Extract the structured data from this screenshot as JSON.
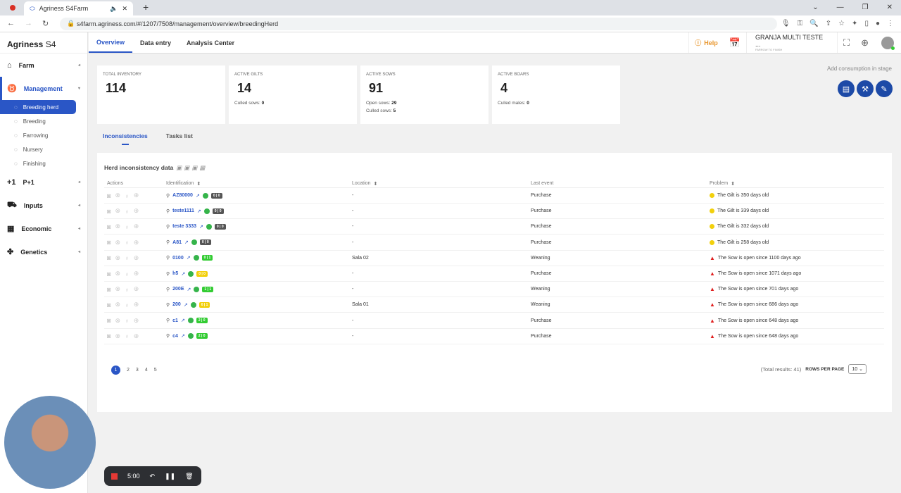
{
  "browser": {
    "tab_title": "Agriness S4Farm",
    "url": "s4farm.agriness.com/#/1207/7508/management/overview/breedingHerd"
  },
  "sidebar": {
    "brand_bold": "Agriness",
    "brand_rest": "S4",
    "items": [
      {
        "label": "Farm",
        "icon": "house-icon"
      },
      {
        "label": "Management",
        "icon": "pig-icon",
        "active": true,
        "sub": [
          {
            "label": "Breeding herd",
            "active": true
          },
          {
            "label": "Breeding"
          },
          {
            "label": "Farrowing"
          },
          {
            "label": "Nursery"
          },
          {
            "label": "Finishing"
          }
        ]
      },
      {
        "label": "P+1",
        "icon": "plus-one-icon"
      },
      {
        "label": "Inputs",
        "icon": "cart-icon"
      },
      {
        "label": "Economic",
        "icon": "calculator-icon"
      },
      {
        "label": "Genetics",
        "icon": "dna-icon"
      }
    ]
  },
  "topnav": {
    "tabs": [
      "Overview",
      "Data entry",
      "Analysis Center"
    ],
    "help": "Help",
    "farm_name": "GRANJA MULTI TESTE ...",
    "farm_type": "FARROW TO FINISH"
  },
  "cards": [
    {
      "label": "TOTAL INVENTORY",
      "value": "114",
      "sub": []
    },
    {
      "label": "ACTIVE GILTS",
      "value": "14",
      "sub": [
        {
          "k": "Culled sows:",
          "v": "0"
        }
      ]
    },
    {
      "label": "ACTIVE SOWS",
      "value": "91",
      "sub": [
        {
          "k": "Open sows:",
          "v": "29"
        },
        {
          "k": "Culled sows:",
          "v": "5"
        }
      ]
    },
    {
      "label": "ACTIVE BOARS",
      "value": "4",
      "sub": [
        {
          "k": "Culled males:",
          "v": "0"
        }
      ]
    }
  ],
  "consumption": {
    "label": "Add consumption in stage"
  },
  "inner_tabs": [
    "Inconsistencies",
    "Tasks list"
  ],
  "table": {
    "title": "Herd inconsistency data",
    "headers": [
      "Actions",
      "Identification",
      "Location",
      "Last event",
      "Problem"
    ],
    "rows": [
      {
        "id": "AZ80000",
        "badge": "0 | 0",
        "badge_color": "#555555",
        "location": "-",
        "event": "Purchase",
        "problem": "The Gilt is 350 days old",
        "level": "warning"
      },
      {
        "id": "teste1111",
        "badge": "0 | 0",
        "badge_color": "#555555",
        "location": "-",
        "event": "Purchase",
        "problem": "The Gilt is 339 days old",
        "level": "warning"
      },
      {
        "id": "teste 3333",
        "badge": "0 | 0",
        "badge_color": "#555555",
        "location": "-",
        "event": "Purchase",
        "problem": "The Gilt is 332 days old",
        "level": "warning"
      },
      {
        "id": "A81",
        "badge": "0 | 0",
        "badge_color": "#555555",
        "location": "-",
        "event": "Purchase",
        "problem": "The Gilt is 258 days old",
        "level": "warning"
      },
      {
        "id": "0100",
        "badge": "0 | 1",
        "badge_color": "#33cc33",
        "location": "Sala 02",
        "event": "Weaning",
        "problem": "The Sow is open since 1100 days ago",
        "level": "alert"
      },
      {
        "id": "h5",
        "badge": "0 | 0",
        "badge_color": "#f2d00c",
        "location": "-",
        "event": "Purchase",
        "problem": "The Sow is open since 1071 days ago",
        "level": "alert"
      },
      {
        "id": "200E",
        "badge": "1 | 1",
        "badge_color": "#33cc33",
        "location": "-",
        "event": "Weaning",
        "problem": "The Sow is open since 701 days ago",
        "level": "alert"
      },
      {
        "id": "200",
        "badge": "0 | 1",
        "badge_color": "#f2d00c",
        "location": "Sala 01",
        "event": "Weaning",
        "problem": "The Sow is open since 686 days ago",
        "level": "alert"
      },
      {
        "id": "c1",
        "badge": "2 | 0",
        "badge_color": "#33cc33",
        "location": "-",
        "event": "Purchase",
        "problem": "The Sow is open since 648 days ago",
        "level": "alert"
      },
      {
        "id": "c4",
        "badge": "2 | 0",
        "badge_color": "#33cc33",
        "location": "-",
        "event": "Purchase",
        "problem": "The Sow is open since 648 days ago",
        "level": "alert"
      }
    ]
  },
  "pagination": {
    "pages": [
      "1",
      "2",
      "3",
      "4",
      "5"
    ],
    "current": "1",
    "total": "(Total results: 41)",
    "rows_label": "ROWS PER PAGE",
    "rows_value": "10"
  },
  "recorder": {
    "time": "5:00"
  }
}
